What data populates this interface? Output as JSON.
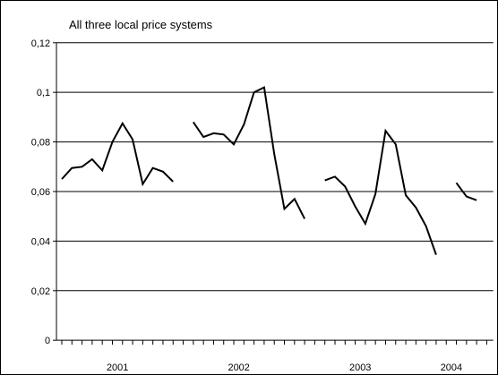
{
  "chart_data": {
    "type": "line",
    "title": "All three local price systems",
    "xlabel": "",
    "ylabel": "",
    "ylim": [
      0,
      0.12
    ],
    "y_ticks": [
      0,
      0.02,
      0.04,
      0.06,
      0.08,
      0.1,
      0.12
    ],
    "y_tick_labels": [
      "0",
      "0,02",
      "0,04",
      "0,06",
      "0,08",
      "0,1",
      "0,12"
    ],
    "x_periods": 43,
    "year_labels": [
      {
        "label": "2001",
        "center": 5.5
      },
      {
        "label": "2002",
        "center": 17.5
      },
      {
        "label": "2003",
        "center": 29.5
      },
      {
        "label": "2004",
        "center": 38.5
      }
    ],
    "grid": "horizontal",
    "legend": "none",
    "line_color": "#000000",
    "series": [
      {
        "segments": [
          {
            "start": 0,
            "values": [
              0.065,
              0.0695,
              0.07,
              0.073,
              0.0685,
              0.08,
              0.0875,
              0.081,
              0.063,
              0.0695,
              0.068,
              0.064
            ]
          },
          {
            "start": 13,
            "values": [
              0.088,
              0.082,
              0.0835,
              0.083,
              0.079,
              0.087,
              0.1,
              0.102,
              0.075,
              0.053,
              0.057,
              0.049
            ]
          },
          {
            "start": 26,
            "values": [
              0.0645,
              0.066,
              0.062,
              0.054,
              0.047,
              0.059,
              0.0845,
              0.079,
              0.0585,
              0.0535,
              0.046,
              0.0345
            ]
          },
          {
            "start": 39,
            "values": [
              0.0635,
              0.058,
              0.0565
            ]
          }
        ]
      }
    ]
  }
}
